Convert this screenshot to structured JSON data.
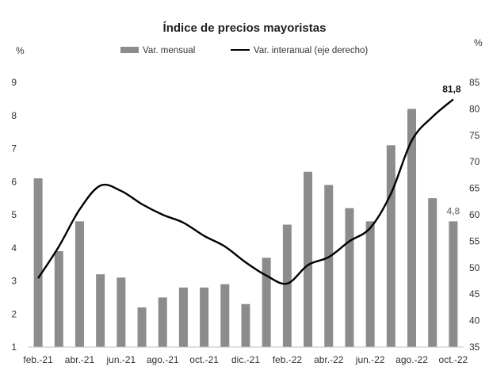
{
  "chart_data": {
    "type": "bar",
    "title": "Índice de precios mayoristas",
    "y_left_unit": "%",
    "y_right_unit": "%",
    "ylim_left": [
      1,
      9
    ],
    "ylim_right": [
      35,
      85
    ],
    "yticks_left": [
      "1",
      "2",
      "3",
      "4",
      "5",
      "6",
      "7",
      "8",
      "9"
    ],
    "yticks_right": [
      "35",
      "40",
      "45",
      "50",
      "55",
      "60",
      "65",
      "70",
      "75",
      "80",
      "85"
    ],
    "categories": [
      "feb.-21",
      "mar.-21",
      "abr.-21",
      "may.-21",
      "jun.-21",
      "jul.-21",
      "ago.-21",
      "sep.-21",
      "oct.-21",
      "nov.-21",
      "dic.-21",
      "ene.-22",
      "feb.-22",
      "mar.-22",
      "abr.-22",
      "may.-22",
      "jun.-22",
      "jul.-22",
      "ago.-22",
      "sep.-22",
      "oct.-22"
    ],
    "x_tick_labels": [
      "feb.-21",
      "abr.-21",
      "jun.-21",
      "ago.-21",
      "oct.-21",
      "dic.-21",
      "feb.-22",
      "abr.-22",
      "jun.-22",
      "ago.-22",
      "oct.-22"
    ],
    "series": [
      {
        "name": "Var. mensual",
        "type": "bar",
        "axis": "left",
        "color": "#8c8c8c",
        "values": [
          6.1,
          3.9,
          4.8,
          3.2,
          3.1,
          2.2,
          2.5,
          2.8,
          2.8,
          2.9,
          2.3,
          3.7,
          4.7,
          6.3,
          5.9,
          5.2,
          4.8,
          7.1,
          8.2,
          5.5,
          4.8
        ]
      },
      {
        "name": "Var. interanual (eje derecho)",
        "type": "line",
        "axis": "right",
        "color": "#000000",
        "values": [
          48,
          54,
          61,
          65.5,
          64.5,
          62,
          60,
          58.5,
          56,
          54,
          51,
          48.5,
          47,
          50.5,
          52,
          55,
          57.5,
          64,
          74,
          78.5,
          81.8
        ]
      }
    ],
    "annotations": [
      {
        "series": 1,
        "index": 20,
        "text": "81,8"
      },
      {
        "series": 0,
        "index": 20,
        "text": "4,8"
      }
    ],
    "legend_position": "top-center",
    "grid": false
  }
}
